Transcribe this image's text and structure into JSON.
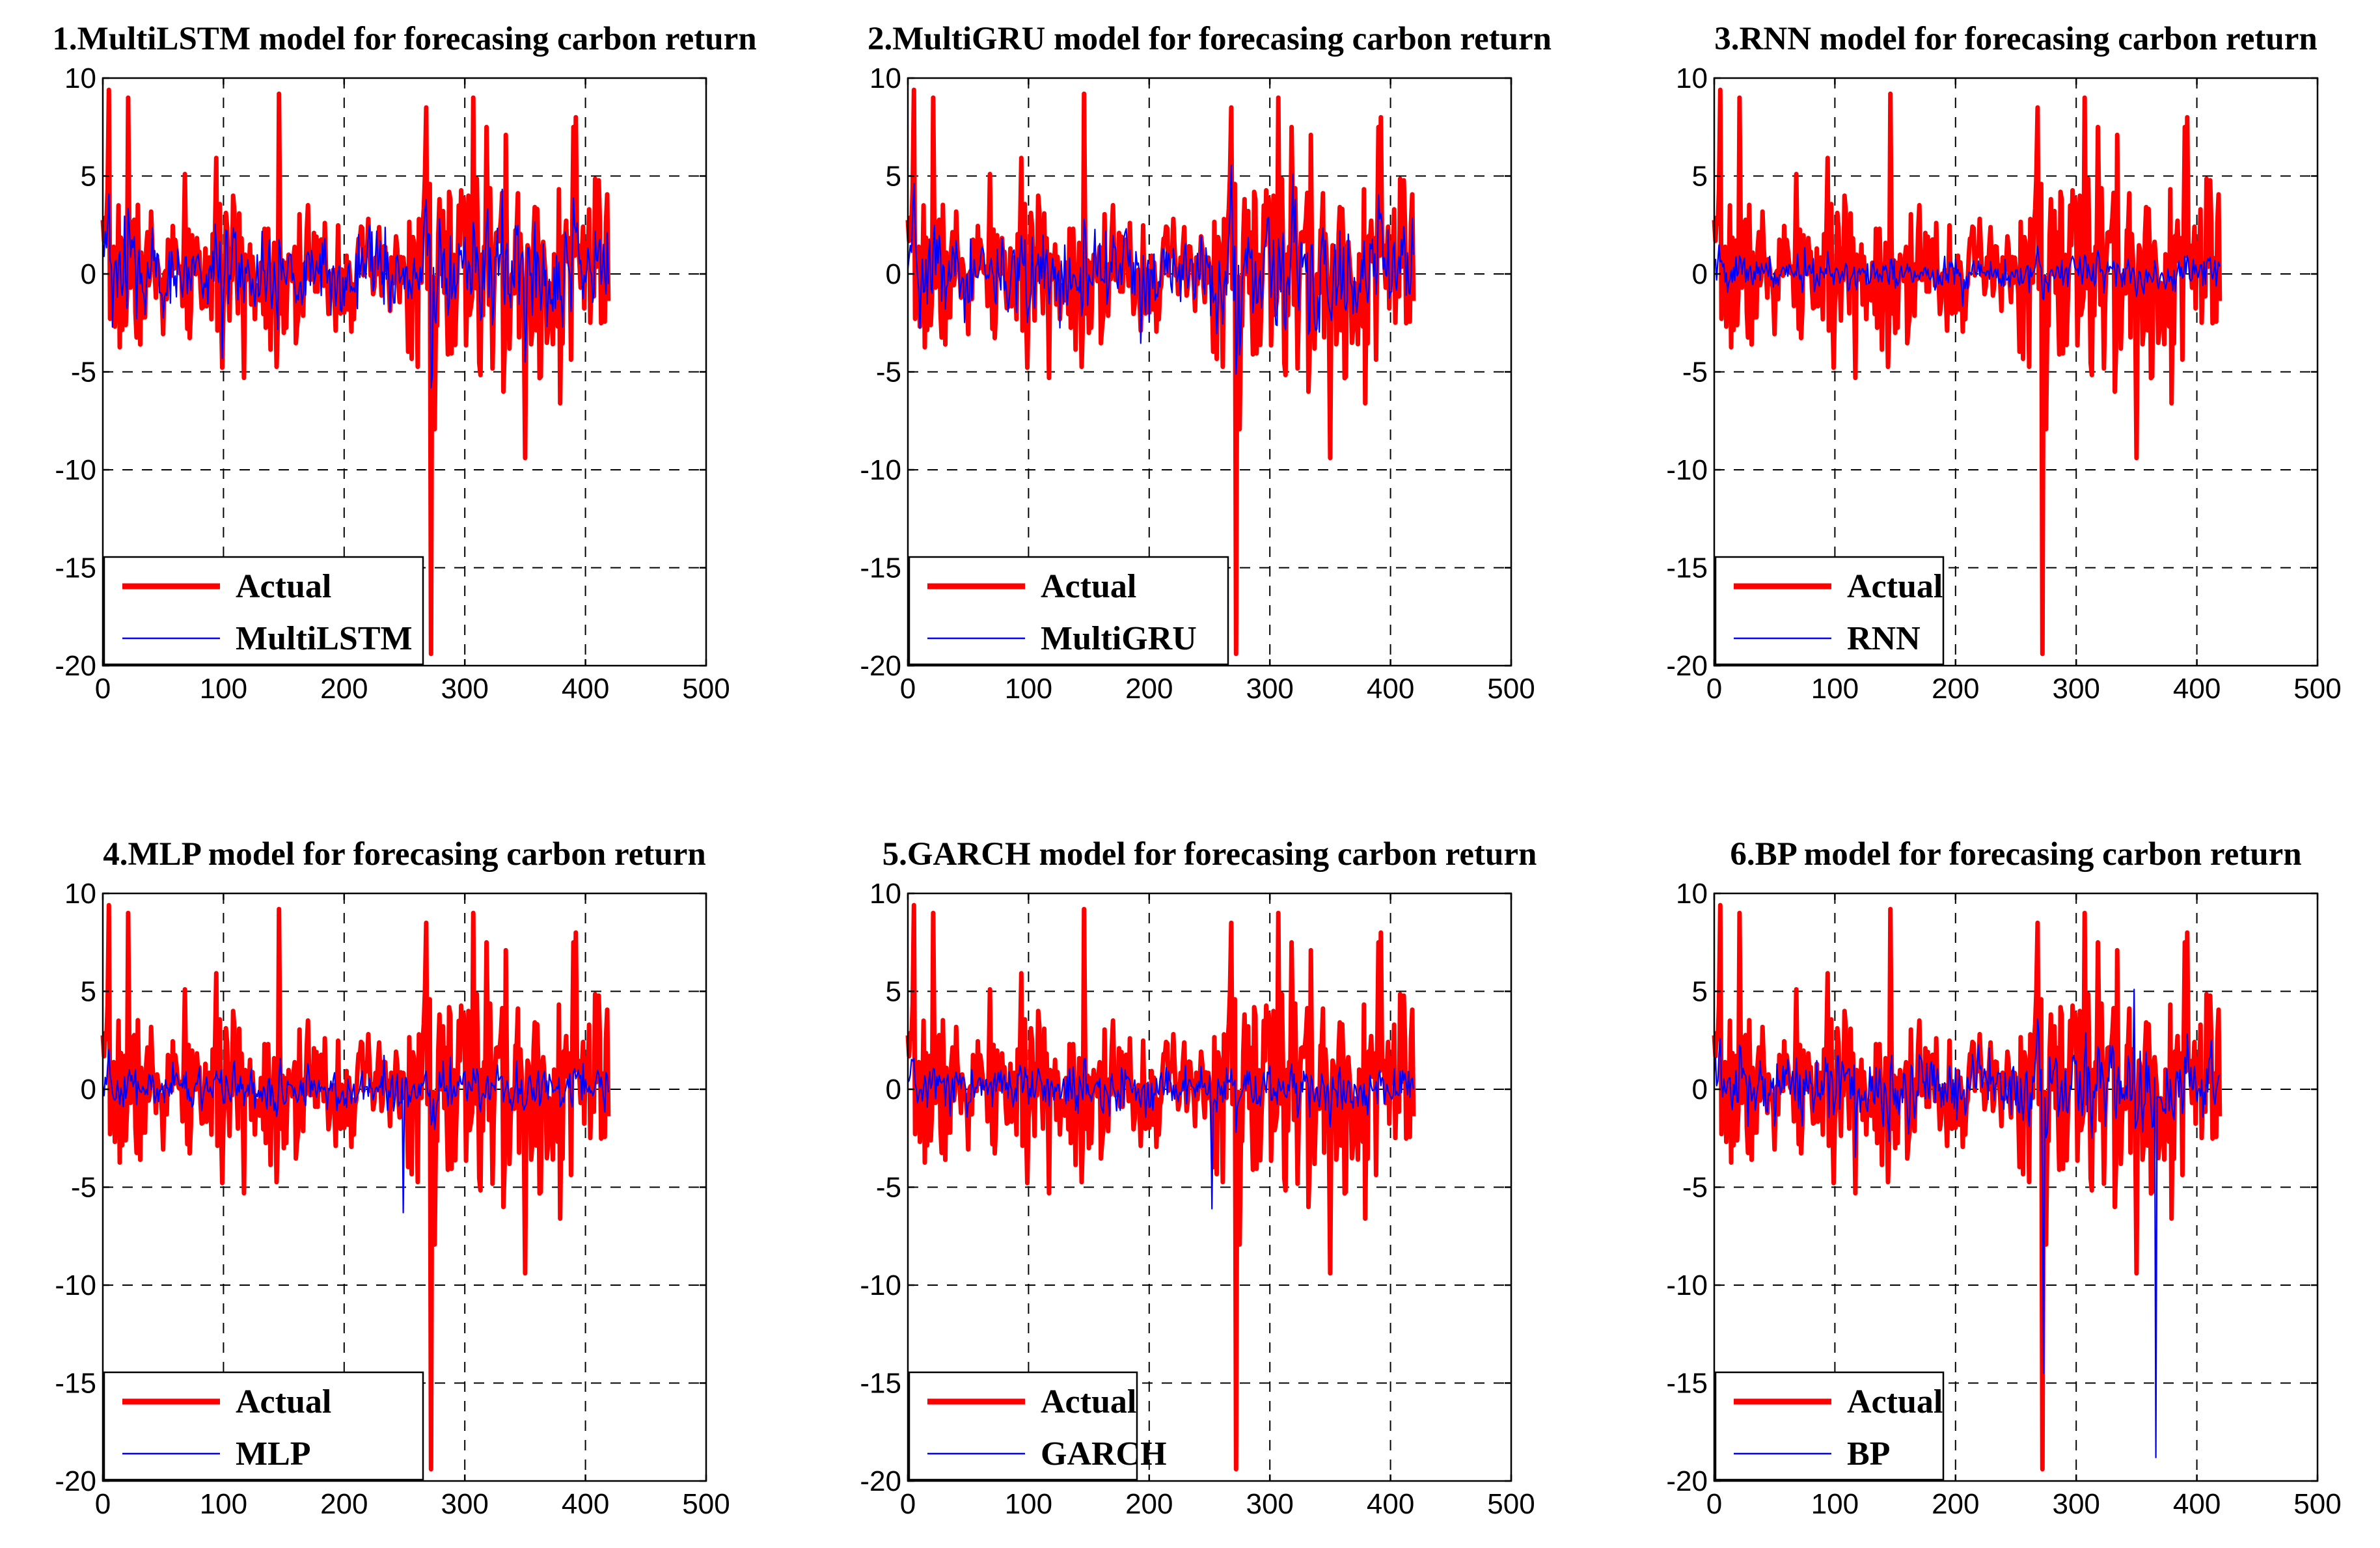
{
  "chart_data": [
    {
      "type": "line",
      "title": "1.MultiLSTM model for forecasing carbon return",
      "xlim": [
        0,
        500
      ],
      "ylim": [
        -20,
        10
      ],
      "xticks": [
        0,
        100,
        200,
        300,
        400,
        500
      ],
      "yticks": [
        10,
        5,
        0,
        -5,
        -10,
        -15,
        -20
      ],
      "grid": true,
      "legend_position": "bottom-left",
      "series": [
        {
          "name": "Actual",
          "color": "#ff0000",
          "style": "thick",
          "seed": 7,
          "spikes": [
            [
              5,
              9.4
            ],
            [
              21,
              9.0
            ],
            [
              146,
              9.2
            ],
            [
              272,
              -19.4
            ],
            [
              268,
              8.5
            ],
            [
              307,
              9.0
            ],
            [
              350,
              -9.4
            ],
            [
              392,
              8.0
            ]
          ]
        },
        {
          "name": "MultiLSTM",
          "color": "#0000ff",
          "style": "thin",
          "follow": 0.55,
          "noise": 1.4
        }
      ]
    },
    {
      "type": "line",
      "title": "2.MultiGRU model for forecasing carbon return",
      "xlim": [
        0,
        500
      ],
      "ylim": [
        -20,
        10
      ],
      "xticks": [
        0,
        100,
        200,
        300,
        400,
        500
      ],
      "yticks": [
        10,
        5,
        0,
        -5,
        -10,
        -15,
        -20
      ],
      "grid": true,
      "legend_position": "bottom-left",
      "series": [
        {
          "name": "Actual",
          "color": "#ff0000",
          "style": "thick",
          "seed": 7,
          "spikes": [
            [
              5,
              9.4
            ],
            [
              21,
              9.0
            ],
            [
              146,
              9.2
            ],
            [
              272,
              -19.4
            ],
            [
              268,
              8.5
            ],
            [
              307,
              9.0
            ],
            [
              350,
              -9.4
            ],
            [
              392,
              8.0
            ]
          ]
        },
        {
          "name": "MultiGRU",
          "color": "#0000ff",
          "style": "thin",
          "follow": 0.55,
          "noise": 1.5
        }
      ]
    },
    {
      "type": "line",
      "title": "3.RNN model for forecasing carbon return",
      "xlim": [
        0,
        500
      ],
      "ylim": [
        -20,
        10
      ],
      "xticks": [
        0,
        100,
        200,
        300,
        400,
        500
      ],
      "yticks": [
        10,
        5,
        0,
        -5,
        -10,
        -15,
        -20
      ],
      "grid": true,
      "legend_position": "bottom-left",
      "series": [
        {
          "name": "Actual",
          "color": "#ff0000",
          "style": "thick",
          "seed": 7,
          "spikes": [
            [
              5,
              9.4
            ],
            [
              21,
              9.0
            ],
            [
              146,
              9.2
            ],
            [
              272,
              -19.4
            ],
            [
              268,
              8.5
            ],
            [
              307,
              9.0
            ],
            [
              350,
              -9.4
            ],
            [
              392,
              8.0
            ]
          ]
        },
        {
          "name": "RNN",
          "color": "#0000ff",
          "style": "thin",
          "follow": 0.15,
          "noise": 0.6
        }
      ]
    },
    {
      "type": "line",
      "title": "4.MLP model for forecasing carbon return",
      "xlim": [
        0,
        500
      ],
      "ylim": [
        -20,
        10
      ],
      "xticks": [
        0,
        100,
        200,
        300,
        400,
        500
      ],
      "yticks": [
        10,
        5,
        0,
        -5,
        -10,
        -15,
        -20
      ],
      "grid": true,
      "legend_position": "bottom-left",
      "series": [
        {
          "name": "Actual",
          "color": "#ff0000",
          "style": "thick",
          "seed": 7,
          "spikes": [
            [
              5,
              9.4
            ],
            [
              21,
              9.0
            ],
            [
              146,
              9.2
            ],
            [
              272,
              -19.4
            ],
            [
              268,
              8.5
            ],
            [
              307,
              9.0
            ],
            [
              350,
              -9.4
            ],
            [
              392,
              8.0
            ]
          ]
        },
        {
          "name": "MLP",
          "color": "#0000ff",
          "style": "thin",
          "follow": 0.2,
          "noise": 0.8,
          "extra": [
            [
              249,
              -6.3
            ]
          ]
        }
      ]
    },
    {
      "type": "line",
      "title": "5.GARCH model for forecasing carbon return",
      "xlim": [
        0,
        500
      ],
      "ylim": [
        -20,
        10
      ],
      "xticks": [
        0,
        100,
        200,
        300,
        400,
        500
      ],
      "yticks": [
        10,
        5,
        0,
        -5,
        -10,
        -15,
        -20
      ],
      "grid": true,
      "legend_position": "bottom-left",
      "series": [
        {
          "name": "Actual",
          "color": "#ff0000",
          "style": "thick",
          "seed": 7,
          "spikes": [
            [
              5,
              9.4
            ],
            [
              21,
              9.0
            ],
            [
              146,
              9.2
            ],
            [
              272,
              -19.4
            ],
            [
              268,
              8.5
            ],
            [
              307,
              9.0
            ],
            [
              350,
              -9.4
            ],
            [
              392,
              8.0
            ]
          ]
        },
        {
          "name": "GARCH",
          "color": "#0000ff",
          "style": "thin",
          "follow": 0.2,
          "noise": 0.8,
          "extra": [
            [
              252,
              -6.1
            ]
          ]
        }
      ]
    },
    {
      "type": "line",
      "title": "6.BP model for forecasing carbon return",
      "xlim": [
        0,
        500
      ],
      "ylim": [
        -20,
        10
      ],
      "xticks": [
        0,
        100,
        200,
        300,
        400,
        500
      ],
      "yticks": [
        10,
        5,
        0,
        -5,
        -10,
        -15,
        -20
      ],
      "grid": true,
      "legend_position": "bottom-left",
      "series": [
        {
          "name": "Actual",
          "color": "#ff0000",
          "style": "thick",
          "seed": 7,
          "spikes": [
            [
              5,
              9.4
            ],
            [
              21,
              9.0
            ],
            [
              146,
              9.2
            ],
            [
              272,
              -19.4
            ],
            [
              268,
              8.5
            ],
            [
              307,
              9.0
            ],
            [
              350,
              -9.4
            ],
            [
              392,
              8.0
            ]
          ]
        },
        {
          "name": "BP",
          "color": "#0000ff",
          "style": "thin",
          "follow": 0.45,
          "noise": 1.2,
          "extra": [
            [
              273,
              -14.5
            ],
            [
              366,
              -18.8
            ],
            [
              348,
              5.1
            ]
          ]
        }
      ]
    }
  ]
}
